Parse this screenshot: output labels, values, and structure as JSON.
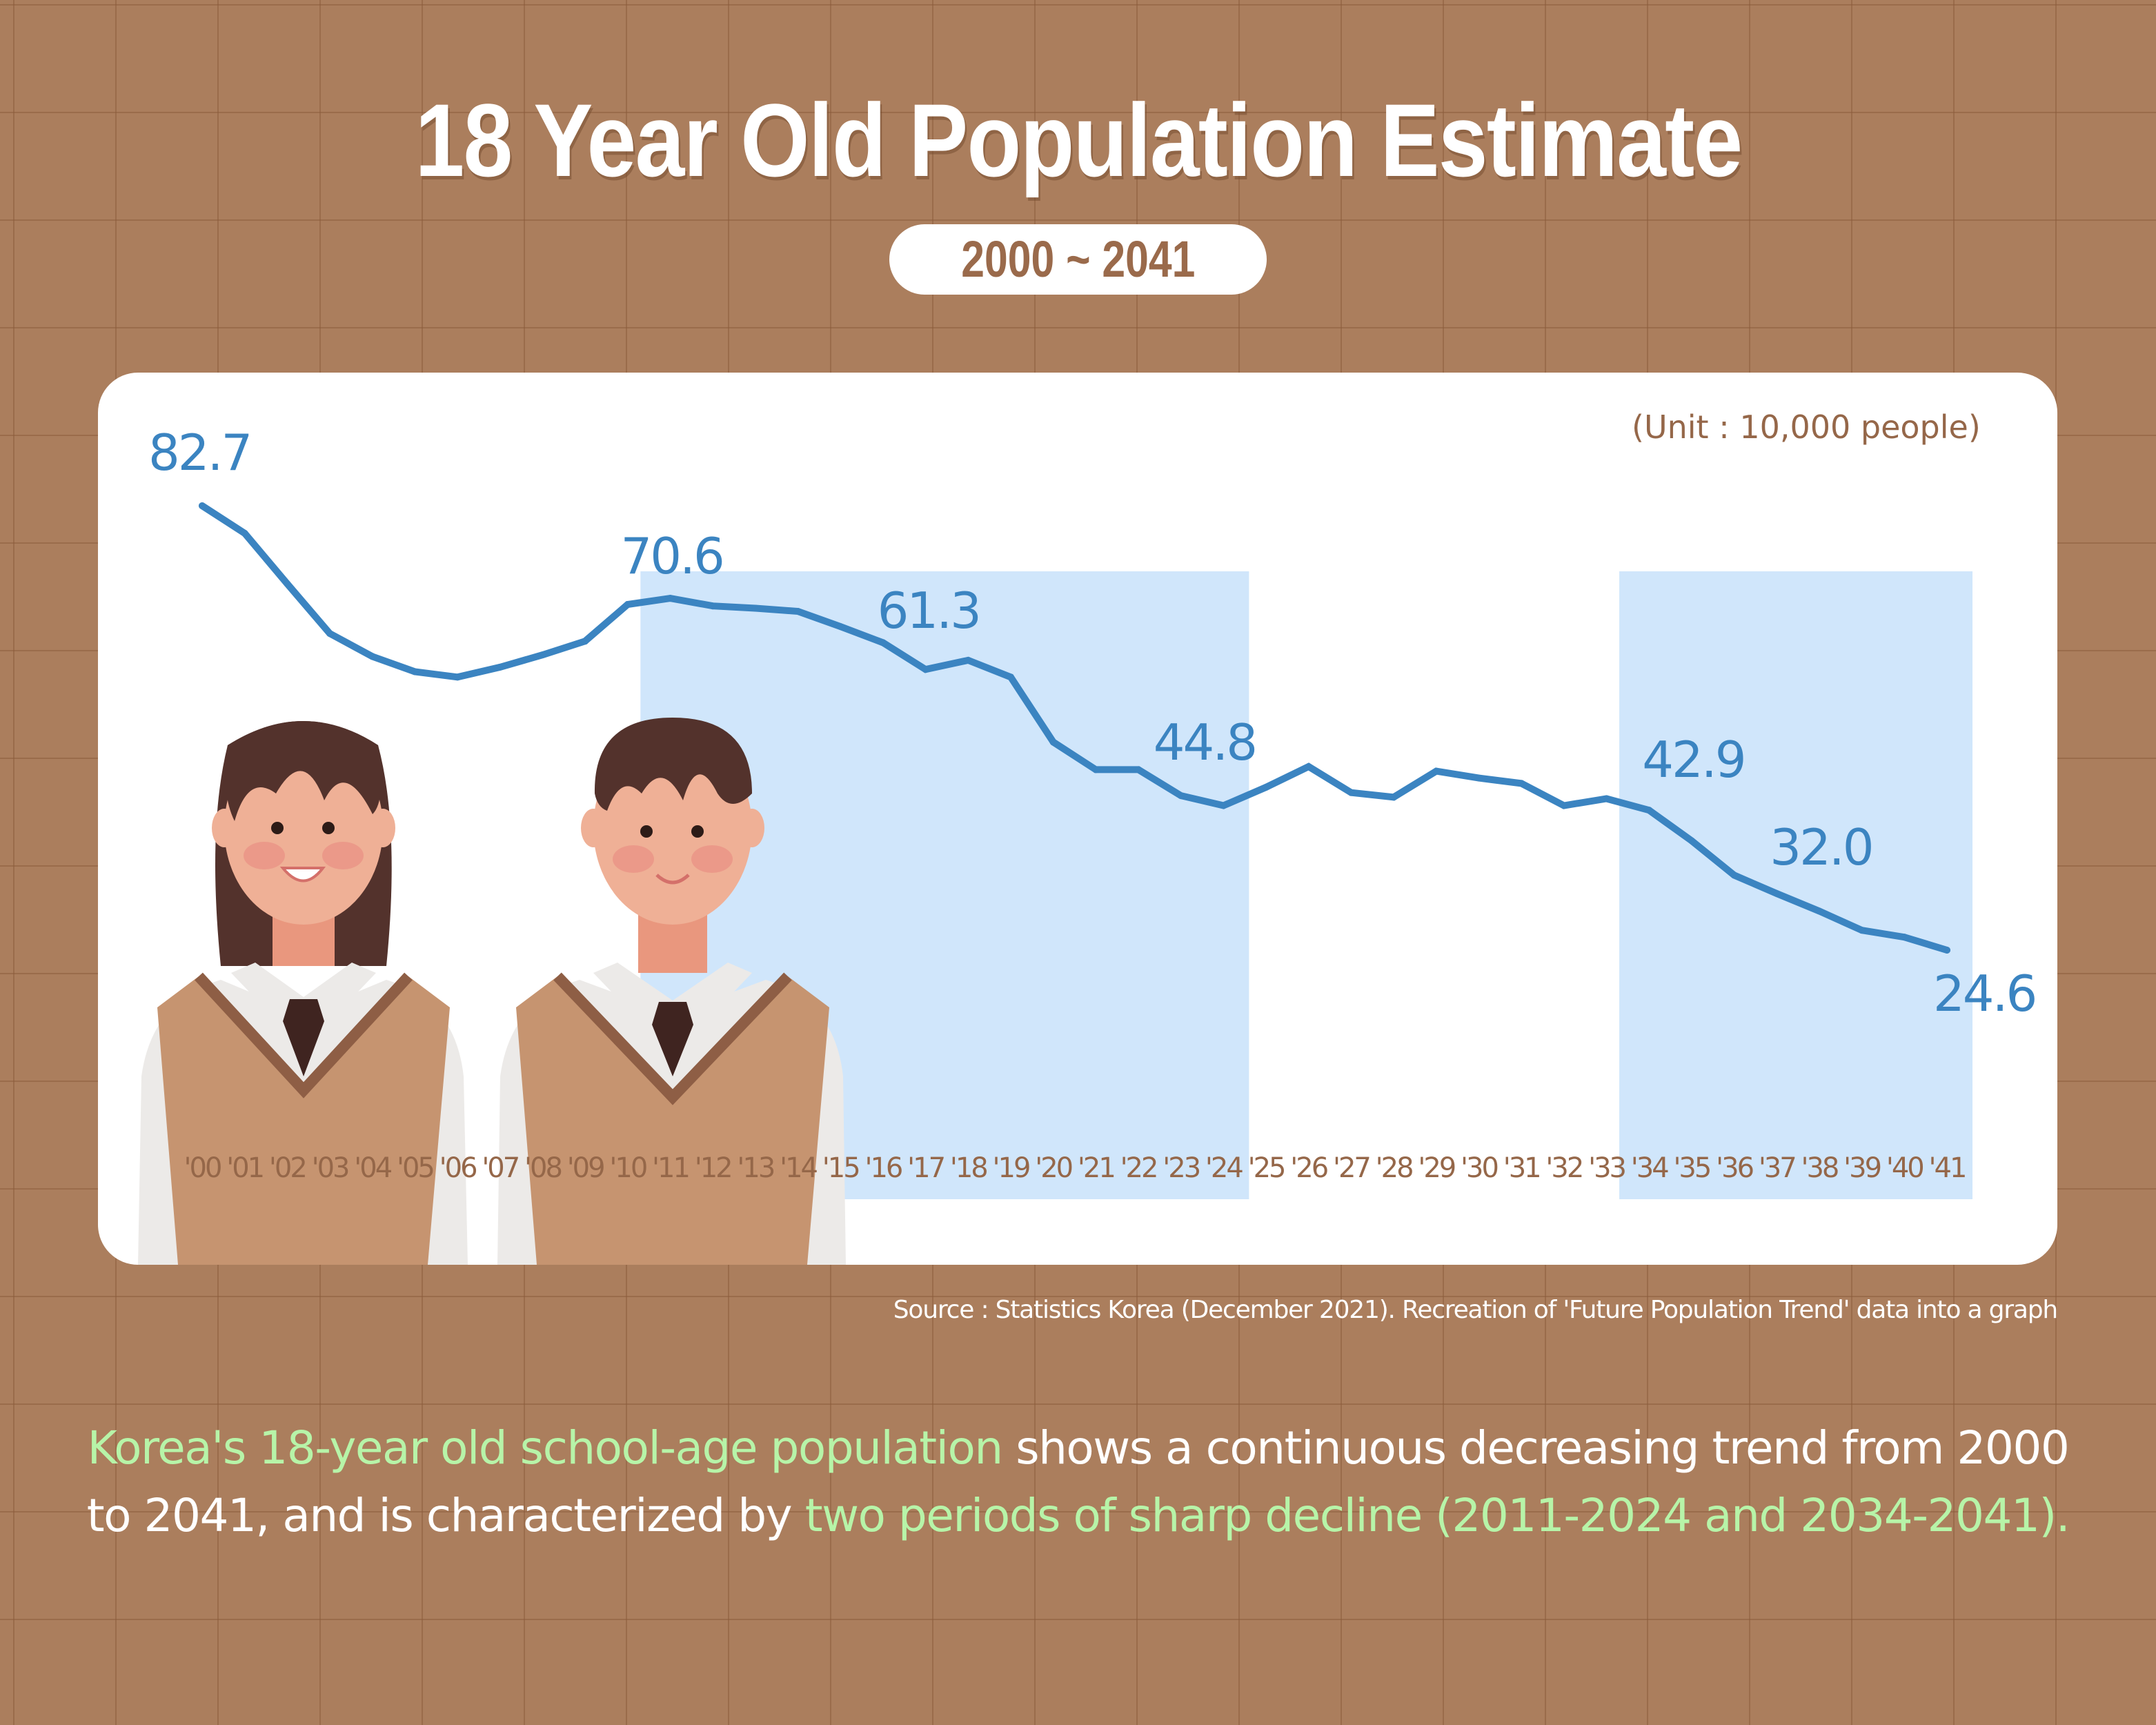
{
  "header": {
    "title": "18 Year Old Population Estimate",
    "period_badge": "2000 ~ 2041"
  },
  "colors": {
    "background": "#AB7E5D",
    "line": "#3B84C1",
    "highlight": "#D0E6FB",
    "axis_text": "#956749",
    "accent_green": "#B7F4A8"
  },
  "chart_data": {
    "type": "line",
    "title": "18 Year Old Population Estimate",
    "subtitle": "2000 ~ 2041",
    "unit_label": "(Unit : 10,000 people)",
    "xlabel": "",
    "ylabel": "",
    "grid": false,
    "x": [
      2000,
      2001,
      2002,
      2003,
      2004,
      2005,
      2006,
      2007,
      2008,
      2009,
      2010,
      2011,
      2012,
      2013,
      2014,
      2015,
      2016,
      2017,
      2018,
      2019,
      2020,
      2021,
      2022,
      2023,
      2024,
      2025,
      2026,
      2027,
      2028,
      2029,
      2030,
      2031,
      2032,
      2033,
      2034,
      2035,
      2036,
      2037,
      2038,
      2039,
      2040,
      2041
    ],
    "tick_labels": [
      "'00",
      "'01",
      "'02",
      "'03",
      "'04",
      "'05",
      "'06",
      "'07",
      "'08",
      "'09",
      "'10",
      "'11",
      "'12",
      "'13",
      "'14",
      "'15",
      "'16",
      "'17",
      "'18",
      "'19",
      "'20",
      "'21",
      "'22",
      "'23",
      "'24",
      "'25",
      "'26",
      "'27",
      "'28",
      "'29",
      "'30",
      "'31",
      "'32",
      "'33",
      "'34",
      "'35",
      "'36",
      "'37",
      "'38",
      "'39",
      "'40",
      "'41"
    ],
    "series": [
      {
        "name": "18 year old population",
        "values": [
          82.7,
          79.1,
          72.5,
          66.0,
          63.0,
          61.0,
          60.3,
          61.6,
          63.2,
          65.0,
          69.8,
          70.6,
          69.6,
          69.3,
          68.9,
          66.9,
          64.8,
          61.3,
          62.5,
          60.3,
          51.8,
          48.2,
          48.2,
          44.8,
          43.5,
          45.9,
          48.6,
          45.2,
          44.6,
          48.0,
          47.1,
          46.4,
          43.5,
          44.4,
          42.9,
          38.9,
          34.4,
          32.0,
          29.7,
          27.2,
          26.3,
          24.6
        ]
      }
    ],
    "data_labels": [
      {
        "year": 2000,
        "text": "82.7"
      },
      {
        "year": 2011,
        "text": "70.6"
      },
      {
        "year": 2017,
        "text": "61.3"
      },
      {
        "year": 2023,
        "text": "44.8"
      },
      {
        "year": 2034,
        "text": "42.9"
      },
      {
        "year": 2037,
        "text": "32.0"
      },
      {
        "year": 2041,
        "text": "24.6"
      }
    ],
    "highlight_periods": [
      {
        "start": 2011,
        "end": 2024
      },
      {
        "start": 2034,
        "end": 2041
      }
    ],
    "ylim": [
      20,
      90
    ]
  },
  "source": "Source : Statistics Korea (December 2021). Recreation of 'Future Population Trend' data into a graph",
  "description": {
    "part1_highlight": "Korea's 18-year old school-age population",
    "part2": " shows a continuous decreasing trend from 2000 to 2041, and is characterized by ",
    "part3_highlight": "two periods of sharp decline (2011-2024 and 2034-2041)."
  }
}
